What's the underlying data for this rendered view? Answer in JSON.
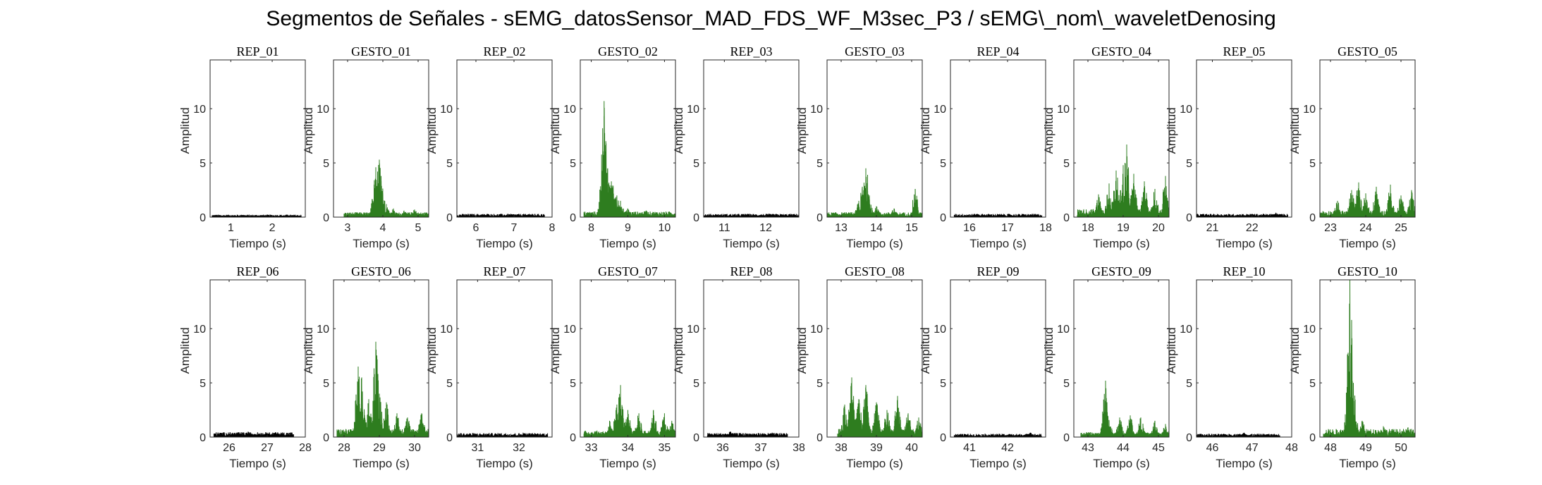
{
  "figure": {
    "title": "Segmentos de Señales - sEMG_datosSensor_MAD_FDS_WF_M3sec_P3 / sEMG\\_nom\\_waveletDenosing"
  },
  "colors": {
    "rep": "#000000",
    "gesto": "#2e7d1f",
    "axis": "#262626"
  },
  "chart_data": [
    {
      "type": "line",
      "title": "REP_01",
      "xlabel": "Tiempo (s)",
      "ylabel": "Amplitud",
      "xlim": [
        0.5,
        2.8
      ],
      "ylim": [
        0,
        14.5
      ],
      "xticks": [
        1,
        2
      ],
      "yticks": [
        0,
        5,
        10
      ],
      "color": "rep",
      "x_start": 0.55,
      "x_end": 2.7,
      "baseline": 0.15,
      "spikes": [
        [
          1.3,
          0.2
        ],
        [
          2.35,
          0.22
        ]
      ]
    },
    {
      "type": "line",
      "title": "GESTO_01",
      "xlabel": "Tiempo (s)",
      "ylabel": "Amplitud",
      "xlim": [
        2.6,
        5.3
      ],
      "ylim": [
        0,
        14.5
      ],
      "xticks": [
        3,
        4,
        5
      ],
      "yticks": [
        0,
        5,
        10
      ],
      "color": "gesto",
      "x_start": 2.9,
      "x_end": 5.3,
      "baseline": 0.3,
      "spikes": [
        [
          3.75,
          2.5
        ],
        [
          3.8,
          4.6
        ],
        [
          3.85,
          4.2
        ],
        [
          3.9,
          5.3
        ],
        [
          3.95,
          3.8
        ],
        [
          4.0,
          2.2
        ],
        [
          4.1,
          1.2
        ],
        [
          4.3,
          0.8
        ],
        [
          4.6,
          0.6
        ],
        [
          4.9,
          0.7
        ]
      ]
    },
    {
      "type": "line",
      "title": "REP_02",
      "xlabel": "Tiempo (s)",
      "ylabel": "Amplitud",
      "xlim": [
        5.5,
        8.0
      ],
      "ylim": [
        0,
        14.5
      ],
      "xticks": [
        6,
        7,
        8
      ],
      "yticks": [
        0,
        5,
        10
      ],
      "color": "rep",
      "x_start": 5.5,
      "x_end": 7.8,
      "baseline": 0.2,
      "spikes": [
        [
          6.3,
          0.3
        ],
        [
          7.4,
          0.3
        ]
      ]
    },
    {
      "type": "line",
      "title": "GESTO_02",
      "xlabel": "Tiempo (s)",
      "ylabel": "Amplitud",
      "xlim": [
        7.7,
        10.3
      ],
      "ylim": [
        0,
        14.5
      ],
      "xticks": [
        8,
        9,
        10
      ],
      "yticks": [
        0,
        5,
        10
      ],
      "color": "gesto",
      "x_start": 7.8,
      "x_end": 10.3,
      "baseline": 0.35,
      "spikes": [
        [
          8.3,
          3.0
        ],
        [
          8.35,
          10.7
        ],
        [
          8.4,
          7.0
        ],
        [
          8.45,
          4.5
        ],
        [
          8.5,
          2.8
        ],
        [
          8.55,
          3.3
        ],
        [
          8.6,
          2.9
        ],
        [
          8.7,
          2.0
        ],
        [
          8.8,
          1.5
        ],
        [
          9.0,
          0.8
        ],
        [
          9.5,
          0.6
        ]
      ]
    },
    {
      "type": "line",
      "title": "REP_03",
      "xlabel": "Tiempo (s)",
      "ylabel": "Amplitud",
      "xlim": [
        10.5,
        12.8
      ],
      "ylim": [
        0,
        14.5
      ],
      "xticks": [
        11,
        12
      ],
      "yticks": [
        0,
        5,
        10
      ],
      "color": "rep",
      "x_start": 10.5,
      "x_end": 12.8,
      "baseline": 0.2,
      "spikes": [
        [
          11.5,
          0.3
        ]
      ]
    },
    {
      "type": "line",
      "title": "GESTO_03",
      "xlabel": "Tiempo (s)",
      "ylabel": "Amplitud",
      "xlim": [
        12.6,
        15.3
      ],
      "ylim": [
        0,
        14.5
      ],
      "xticks": [
        13,
        14,
        15
      ],
      "yticks": [
        0,
        5,
        10
      ],
      "color": "gesto",
      "x_start": 12.6,
      "x_end": 15.3,
      "baseline": 0.3,
      "spikes": [
        [
          13.5,
          1.5
        ],
        [
          13.6,
          2.8
        ],
        [
          13.7,
          4.5
        ],
        [
          13.75,
          3.9
        ],
        [
          13.8,
          2.0
        ],
        [
          14.0,
          1.0
        ],
        [
          14.5,
          0.8
        ],
        [
          15.1,
          2.6
        ]
      ]
    },
    {
      "type": "line",
      "title": "REP_04",
      "xlabel": "Tiempo (s)",
      "ylabel": "Amplitud",
      "xlim": [
        15.5,
        18.0
      ],
      "ylim": [
        0,
        14.5
      ],
      "xticks": [
        16,
        17,
        18
      ],
      "yticks": [
        0,
        5,
        10
      ],
      "color": "rep",
      "x_start": 15.6,
      "x_end": 17.9,
      "baseline": 0.2,
      "spikes": [
        [
          16.2,
          0.3
        ]
      ]
    },
    {
      "type": "line",
      "title": "GESTO_04",
      "xlabel": "Tiempo (s)",
      "ylabel": "Amplitud",
      "xlim": [
        17.6,
        20.3
      ],
      "ylim": [
        0,
        14.5
      ],
      "xticks": [
        18,
        19,
        20
      ],
      "yticks": [
        0,
        5,
        10
      ],
      "color": "gesto",
      "x_start": 17.7,
      "x_end": 20.3,
      "baseline": 0.5,
      "spikes": [
        [
          18.3,
          2.1
        ],
        [
          18.6,
          3.1
        ],
        [
          18.8,
          4.3
        ],
        [
          19.0,
          4.8
        ],
        [
          19.1,
          6.7
        ],
        [
          19.3,
          4.0
        ],
        [
          19.6,
          3.3
        ],
        [
          19.9,
          2.6
        ],
        [
          20.2,
          3.8
        ]
      ]
    },
    {
      "type": "line",
      "title": "REP_05",
      "xlabel": "Tiempo (s)",
      "ylabel": "Amplitud",
      "xlim": [
        20.6,
        23.0
      ],
      "ylim": [
        0,
        14.5
      ],
      "xticks": [
        21,
        22
      ],
      "yticks": [
        0,
        5,
        10
      ],
      "color": "rep",
      "x_start": 20.6,
      "x_end": 22.9,
      "baseline": 0.2,
      "spikes": [
        [
          22.0,
          0.3
        ],
        [
          22.6,
          0.4
        ]
      ]
    },
    {
      "type": "line",
      "title": "GESTO_05",
      "xlabel": "Tiempo (s)",
      "ylabel": "Amplitud",
      "xlim": [
        22.7,
        25.4
      ],
      "ylim": [
        0,
        14.5
      ],
      "xticks": [
        23,
        24,
        25
      ],
      "yticks": [
        0,
        5,
        10
      ],
      "color": "gesto",
      "x_start": 22.7,
      "x_end": 25.4,
      "baseline": 0.4,
      "spikes": [
        [
          23.2,
          1.5
        ],
        [
          23.6,
          2.5
        ],
        [
          23.8,
          3.2
        ],
        [
          24.0,
          2.2
        ],
        [
          24.3,
          2.8
        ],
        [
          24.7,
          3.0
        ],
        [
          25.0,
          2.0
        ],
        [
          25.3,
          2.5
        ]
      ]
    },
    {
      "type": "line",
      "title": "REP_06",
      "xlabel": "Tiempo (s)",
      "ylabel": "Amplitud",
      "xlim": [
        25.5,
        28.0
      ],
      "ylim": [
        0,
        14.5
      ],
      "xticks": [
        26,
        27,
        28
      ],
      "yticks": [
        0,
        5,
        10
      ],
      "color": "rep",
      "x_start": 25.6,
      "x_end": 27.7,
      "baseline": 0.3,
      "spikes": [
        [
          26.5,
          0.5
        ],
        [
          27.0,
          0.4
        ]
      ]
    },
    {
      "type": "line",
      "title": "GESTO_06",
      "xlabel": "Tiempo (s)",
      "ylabel": "Amplitud",
      "xlim": [
        27.7,
        30.4
      ],
      "ylim": [
        0,
        14.5
      ],
      "xticks": [
        28,
        29,
        30
      ],
      "yticks": [
        0,
        5,
        10
      ],
      "color": "gesto",
      "x_start": 27.8,
      "x_end": 30.4,
      "baseline": 0.5,
      "spikes": [
        [
          28.4,
          6.5
        ],
        [
          28.5,
          5.5
        ],
        [
          28.7,
          3.5
        ],
        [
          28.9,
          8.8
        ],
        [
          29.0,
          4.0
        ],
        [
          29.2,
          3.2
        ],
        [
          29.5,
          2.2
        ],
        [
          29.8,
          1.8
        ],
        [
          30.2,
          2.2
        ]
      ]
    },
    {
      "type": "line",
      "title": "REP_07",
      "xlabel": "Tiempo (s)",
      "ylabel": "Amplitud",
      "xlim": [
        30.5,
        32.8
      ],
      "ylim": [
        0,
        14.5
      ],
      "xticks": [
        31,
        32
      ],
      "yticks": [
        0,
        5,
        10
      ],
      "color": "rep",
      "x_start": 30.5,
      "x_end": 32.7,
      "baseline": 0.25,
      "spikes": [
        [
          32.1,
          0.4
        ]
      ]
    },
    {
      "type": "line",
      "title": "GESTO_07",
      "xlabel": "Tiempo (s)",
      "ylabel": "Amplitud",
      "xlim": [
        32.7,
        35.3
      ],
      "ylim": [
        0,
        14.5
      ],
      "xticks": [
        33,
        34,
        35
      ],
      "yticks": [
        0,
        5,
        10
      ],
      "color": "gesto",
      "x_start": 32.8,
      "x_end": 35.3,
      "baseline": 0.4,
      "spikes": [
        [
          33.5,
          1.5
        ],
        [
          33.7,
          3.0
        ],
        [
          33.8,
          4.8
        ],
        [
          34.0,
          2.5
        ],
        [
          34.3,
          2.2
        ],
        [
          34.7,
          2.5
        ],
        [
          35.0,
          2.2
        ],
        [
          35.2,
          1.5
        ]
      ]
    },
    {
      "type": "line",
      "title": "REP_08",
      "xlabel": "Tiempo (s)",
      "ylabel": "Amplitud",
      "xlim": [
        35.5,
        38.0
      ],
      "ylim": [
        0,
        14.5
      ],
      "xticks": [
        36,
        37,
        38
      ],
      "yticks": [
        0,
        5,
        10
      ],
      "color": "rep",
      "x_start": 35.6,
      "x_end": 37.7,
      "baseline": 0.25,
      "spikes": [
        [
          36.2,
          0.5
        ],
        [
          37.3,
          0.4
        ]
      ]
    },
    {
      "type": "line",
      "title": "GESTO_08",
      "xlabel": "Tiempo (s)",
      "ylabel": "Amplitud",
      "xlim": [
        37.6,
        40.3
      ],
      "ylim": [
        0,
        14.5
      ],
      "xticks": [
        38,
        39,
        40
      ],
      "yticks": [
        0,
        5,
        10
      ],
      "color": "gesto",
      "x_start": 37.9,
      "x_end": 40.3,
      "baseline": 0.5,
      "spikes": [
        [
          38.1,
          3.0
        ],
        [
          38.3,
          5.5
        ],
        [
          38.5,
          3.5
        ],
        [
          38.7,
          4.8
        ],
        [
          39.0,
          3.2
        ],
        [
          39.3,
          2.5
        ],
        [
          39.6,
          3.8
        ],
        [
          39.9,
          2.2
        ],
        [
          40.2,
          1.8
        ]
      ]
    },
    {
      "type": "line",
      "title": "REP_09",
      "xlabel": "Tiempo (s)",
      "ylabel": "Amplitud",
      "xlim": [
        40.5,
        43.0
      ],
      "ylim": [
        0,
        14.5
      ],
      "xticks": [
        41,
        42
      ],
      "yticks": [
        0,
        5,
        10
      ],
      "color": "rep",
      "x_start": 40.6,
      "x_end": 42.9,
      "baseline": 0.2,
      "spikes": [
        [
          42.6,
          0.4
        ]
      ]
    },
    {
      "type": "line",
      "title": "GESTO_09",
      "xlabel": "Tiempo (s)",
      "ylabel": "Amplitud",
      "xlim": [
        42.6,
        45.3
      ],
      "ylim": [
        0,
        14.5
      ],
      "xticks": [
        43,
        44,
        45
      ],
      "yticks": [
        0,
        5,
        10
      ],
      "color": "gesto",
      "x_start": 42.8,
      "x_end": 45.3,
      "baseline": 0.3,
      "spikes": [
        [
          43.5,
          5.2
        ],
        [
          43.6,
          1.5
        ],
        [
          43.9,
          1.8
        ],
        [
          44.2,
          2.0
        ],
        [
          44.5,
          1.8
        ],
        [
          44.9,
          1.5
        ],
        [
          45.2,
          1.2
        ]
      ]
    },
    {
      "type": "line",
      "title": "REP_10",
      "xlabel": "Tiempo (s)",
      "ylabel": "Amplitud",
      "xlim": [
        45.6,
        48.0
      ],
      "ylim": [
        0,
        14.5
      ],
      "xticks": [
        46,
        47,
        48
      ],
      "yticks": [
        0,
        5,
        10
      ],
      "color": "rep",
      "x_start": 45.6,
      "x_end": 47.7,
      "baseline": 0.2,
      "spikes": [
        [
          46.8,
          0.4
        ],
        [
          47.3,
          0.3
        ]
      ]
    },
    {
      "type": "line",
      "title": "GESTO_10",
      "xlabel": "Tiempo (s)",
      "ylabel": "Amplitud",
      "xlim": [
        47.7,
        50.4
      ],
      "ylim": [
        0,
        14.5
      ],
      "xticks": [
        48,
        49,
        50
      ],
      "yticks": [
        0,
        5,
        10
      ],
      "color": "gesto",
      "x_start": 47.8,
      "x_end": 50.4,
      "baseline": 0.5,
      "spikes": [
        [
          48.5,
          3.5
        ],
        [
          48.55,
          14.5
        ],
        [
          48.6,
          10.8
        ],
        [
          48.65,
          5.0
        ],
        [
          48.7,
          2.2
        ],
        [
          48.9,
          1.5
        ],
        [
          49.5,
          1.0
        ],
        [
          50.2,
          0.9
        ]
      ]
    }
  ]
}
